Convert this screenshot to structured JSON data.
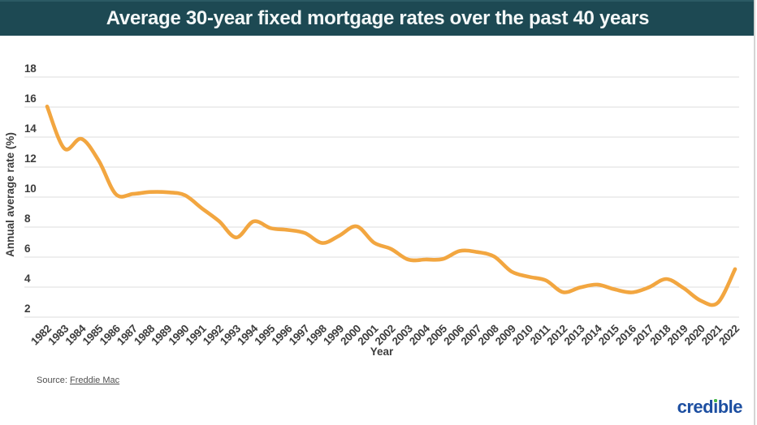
{
  "header": {
    "title": "Average 30-year fixed mortgage rates over the past 40 years"
  },
  "chart_data": {
    "type": "line",
    "xlabel": "Year",
    "ylabel": "Annual average rate (%)",
    "x": [
      1982,
      1983,
      1984,
      1985,
      1986,
      1987,
      1988,
      1989,
      1990,
      1991,
      1992,
      1993,
      1994,
      1995,
      1996,
      1997,
      1998,
      1999,
      2000,
      2001,
      2002,
      2003,
      2004,
      2005,
      2006,
      2007,
      2008,
      2009,
      2010,
      2011,
      2012,
      2013,
      2014,
      2015,
      2016,
      2017,
      2018,
      2019,
      2020,
      2021,
      2022
    ],
    "values": [
      16.04,
      13.24,
      13.88,
      12.43,
      10.19,
      10.21,
      10.34,
      10.32,
      10.13,
      9.25,
      8.39,
      7.31,
      8.38,
      7.93,
      7.81,
      7.6,
      6.94,
      7.44,
      8.05,
      6.97,
      6.54,
      5.83,
      5.84,
      5.87,
      6.41,
      6.34,
      6.03,
      5.04,
      4.69,
      4.45,
      3.66,
      3.98,
      4.17,
      3.85,
      3.65,
      3.99,
      4.54,
      3.94,
      3.1,
      2.96,
      5.2
    ],
    "yticks": [
      2,
      4,
      6,
      8,
      10,
      12,
      14,
      16,
      18
    ],
    "ylim": [
      2,
      18
    ],
    "grid": true,
    "legend": "none",
    "line_color": "#F2A640",
    "gridline_color": "#dcdcdc"
  },
  "footer": {
    "source_prefix": "Source:",
    "source_link": "Freddie Mac",
    "brand": "credible"
  },
  "colors": {
    "title_bar_bg": "#1d4953",
    "title_text": "#f4f8f8",
    "axis_text": "#3d3d3d",
    "brand_blue": "#1d4fa1",
    "brand_dot_green": "#46b749"
  }
}
